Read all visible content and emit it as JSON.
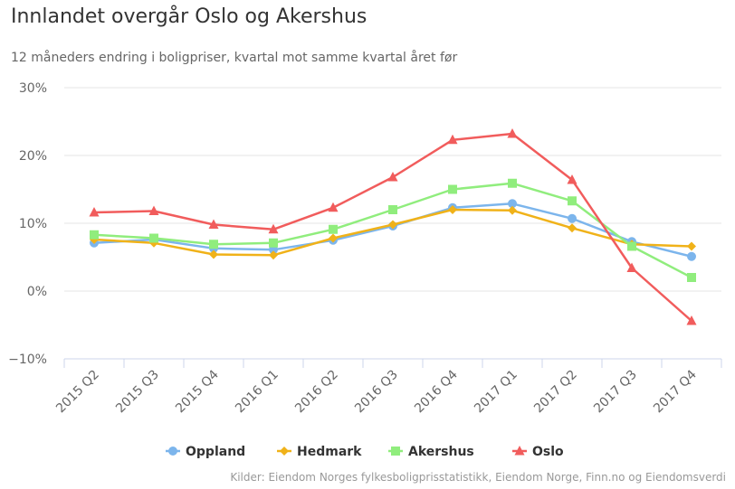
{
  "chart_data": {
    "type": "line",
    "title": "Innlandet overgår Oslo og Akershus",
    "subtitle": "12 måneders endring i boligpriser, kvartal mot samme kvartal året før",
    "categories": [
      "2015 Q2",
      "2015 Q3",
      "2015 Q4",
      "2016 Q1",
      "2016 Q2",
      "2016 Q3",
      "2016 Q4",
      "2017 Q1",
      "2017 Q2",
      "2017 Q3",
      "2017 Q4"
    ],
    "y_ticks": [
      -10,
      0,
      10,
      20,
      30
    ],
    "y_tick_suffix": "%",
    "ylim": [
      -10,
      30
    ],
    "grid": true,
    "legend_position": "bottom-center",
    "series": [
      {
        "name": "Oppland",
        "color": "#7cb5ec",
        "marker": "circle",
        "values": [
          7.1,
          7.6,
          6.3,
          6.1,
          7.5,
          9.6,
          12.3,
          12.9,
          10.7,
          7.3,
          5.1
        ]
      },
      {
        "name": "Hedmark",
        "color": "#f0b219",
        "marker": "diamond",
        "values": [
          7.6,
          7.1,
          5.4,
          5.3,
          7.8,
          9.8,
          12.0,
          11.9,
          9.3,
          6.9,
          6.6
        ]
      },
      {
        "name": "Akershus",
        "color": "#90ed7d",
        "marker": "square",
        "values": [
          8.3,
          7.8,
          6.9,
          7.1,
          9.1,
          12.0,
          15.0,
          15.9,
          13.3,
          6.6,
          2.0
        ]
      },
      {
        "name": "Oslo",
        "color": "#f15c5c",
        "marker": "triangle",
        "values": [
          11.6,
          11.8,
          9.8,
          9.1,
          12.3,
          16.8,
          22.3,
          23.2,
          16.4,
          3.4,
          -4.4
        ]
      }
    ],
    "credits": "Kilder: Eiendom Norges fylkesboligprisstatistikk, Eiendom Norge, Finn.no og Eiendomsverdi"
  }
}
